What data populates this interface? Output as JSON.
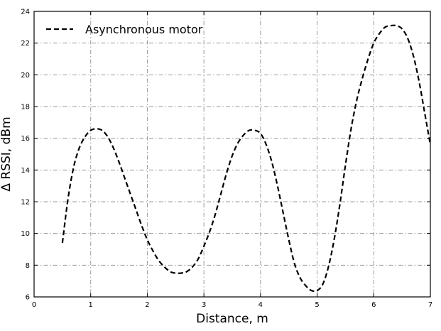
{
  "chart_data": {
    "type": "line",
    "xlabel": "Distance, m",
    "ylabel": "Δ RSSI, dBm",
    "xlim": [
      0,
      7
    ],
    "ylim": [
      6,
      24
    ],
    "xticks": [
      0,
      1,
      2,
      3,
      4,
      5,
      6,
      7
    ],
    "yticks": [
      6,
      8,
      10,
      12,
      14,
      16,
      18,
      20,
      22,
      24
    ],
    "grid": true,
    "legend": {
      "placement": "top-left"
    },
    "series": [
      {
        "name": "Asynchronous motor",
        "color": "#000000",
        "line_style": "dashed",
        "x": [
          0.5,
          0.6,
          0.7,
          0.8,
          0.9,
          1.0,
          1.1,
          1.2,
          1.3,
          1.4,
          1.5,
          1.6,
          1.7,
          1.8,
          1.9,
          2.0,
          2.1,
          2.2,
          2.3,
          2.4,
          2.5,
          2.6,
          2.7,
          2.8,
          2.9,
          3.0,
          3.1,
          3.2,
          3.3,
          3.4,
          3.5,
          3.6,
          3.7,
          3.8,
          3.9,
          4.0,
          4.1,
          4.2,
          4.3,
          4.4,
          4.5,
          4.6,
          4.7,
          4.8,
          4.9,
          5.0,
          5.1,
          5.2,
          5.3,
          5.4,
          5.5,
          5.6,
          5.7,
          5.8,
          5.9,
          6.0,
          6.1,
          6.2,
          6.3,
          6.4,
          6.5,
          6.6,
          6.7,
          6.8,
          6.9,
          7.0
        ],
        "y": [
          9.4,
          12.2,
          14.2,
          15.4,
          16.1,
          16.5,
          16.6,
          16.5,
          16.1,
          15.4,
          14.5,
          13.5,
          12.5,
          11.5,
          10.5,
          9.6,
          8.9,
          8.3,
          7.9,
          7.6,
          7.5,
          7.5,
          7.6,
          7.9,
          8.4,
          9.2,
          10.1,
          11.2,
          12.5,
          13.8,
          14.9,
          15.7,
          16.2,
          16.5,
          16.5,
          16.3,
          15.6,
          14.5,
          13.0,
          11.3,
          9.6,
          8.1,
          7.2,
          6.7,
          6.4,
          6.4,
          6.8,
          7.9,
          9.6,
          11.8,
          14.3,
          16.6,
          18.4,
          19.8,
          21.0,
          22.0,
          22.6,
          23.0,
          23.1,
          23.1,
          22.9,
          22.3,
          21.2,
          19.6,
          17.6,
          15.6
        ]
      }
    ]
  }
}
